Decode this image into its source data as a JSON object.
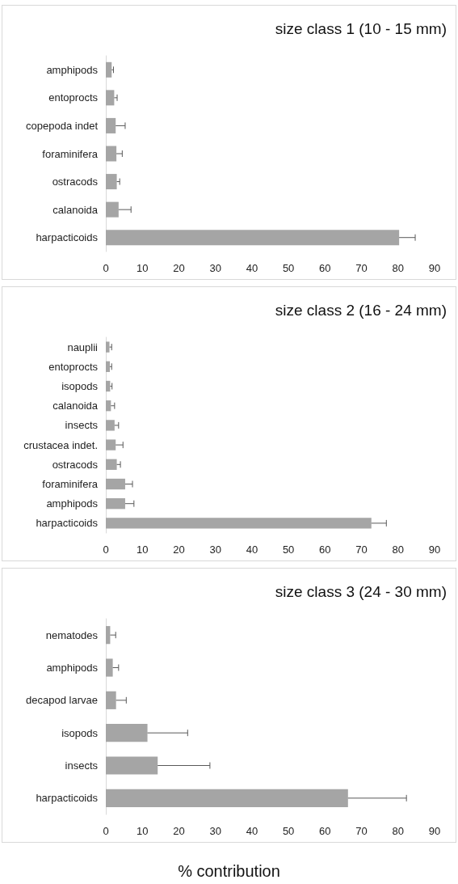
{
  "chart_data": [
    {
      "type": "bar",
      "orientation": "horizontal",
      "title": "size class 1 (10 - 15 mm)",
      "color": "#a5a5a5",
      "categories": [
        "amphipods",
        "entoprocts",
        "copepoda indet",
        "foraminifera",
        "ostracods",
        "calanoida",
        "harpacticoids"
      ],
      "values": [
        1.6,
        2.3,
        2.7,
        2.9,
        3.0,
        3.5,
        80.3
      ],
      "errors": [
        [
          1.6,
          2.1
        ],
        [
          2.3,
          3.1
        ],
        [
          2.7,
          5.3
        ],
        [
          2.9,
          4.5
        ],
        [
          3.0,
          3.8
        ],
        [
          3.5,
          6.9
        ],
        [
          80.3,
          84.7
        ]
      ],
      "xlim": [
        0,
        90
      ],
      "xticks": [
        0,
        10,
        20,
        30,
        40,
        50,
        60,
        70,
        80,
        90
      ]
    },
    {
      "type": "bar",
      "orientation": "horizontal",
      "title": "size class 2 (16 - 24 mm)",
      "color": "#a5a5a5",
      "categories": [
        "nauplii",
        "entoprocts",
        "isopods",
        "calanoida",
        "insects",
        "crustacea indet.",
        "ostracods",
        "foraminifera",
        "amphipods",
        "harpacticoids"
      ],
      "values": [
        1.0,
        1.1,
        1.2,
        1.4,
        2.4,
        2.7,
        3.0,
        5.3,
        5.3,
        72.7
      ],
      "errors": [
        [
          1.0,
          1.6
        ],
        [
          1.1,
          1.6
        ],
        [
          1.2,
          1.7
        ],
        [
          1.4,
          2.4
        ],
        [
          2.4,
          3.5
        ],
        [
          2.7,
          4.7
        ],
        [
          3.0,
          4.0
        ],
        [
          5.3,
          7.3
        ],
        [
          5.3,
          7.7
        ],
        [
          72.7,
          76.8
        ]
      ],
      "xlim": [
        0,
        90
      ],
      "xticks": [
        0,
        10,
        20,
        30,
        40,
        50,
        60,
        70,
        80,
        90
      ]
    },
    {
      "type": "bar",
      "orientation": "horizontal",
      "title": "size class 3 (24 - 30 mm)",
      "xlabel": "% contribution",
      "color": "#a5a5a5",
      "categories": [
        "nematodes",
        "amphipods",
        "decapod larvae",
        "isopods",
        "insects",
        "harpacticoids"
      ],
      "values": [
        1.2,
        1.9,
        2.8,
        11.4,
        14.2,
        66.3
      ],
      "errors": [
        [
          1.2,
          2.7
        ],
        [
          1.9,
          3.5
        ],
        [
          2.8,
          5.6
        ],
        [
          11.4,
          22.4
        ],
        [
          14.2,
          28.5
        ],
        [
          66.3,
          82.3
        ]
      ],
      "xlim": [
        0,
        90
      ],
      "xticks": [
        0,
        10,
        20,
        30,
        40,
        50,
        60,
        70,
        80,
        90
      ]
    }
  ]
}
